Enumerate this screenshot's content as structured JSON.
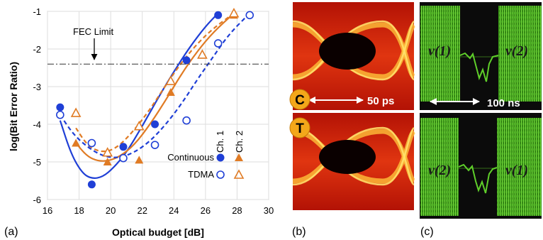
{
  "panel_labels": {
    "a": "(a)",
    "b": "(b)",
    "c": "(c)"
  },
  "chart_data": {
    "type": "scatter",
    "xlabel": "Optical budget [dB]",
    "ylabel": "log(Bit Error Ratio)",
    "xlim": [
      16,
      30
    ],
    "ylim": [
      -6,
      -1
    ],
    "xticks": [
      "16",
      "18",
      "20",
      "22",
      "24",
      "26",
      "28",
      "30"
    ],
    "yticks": [
      "-1",
      "-2",
      "-3",
      "-4",
      "-5",
      "-6"
    ],
    "fec_label": "FEC Limit",
    "fec_value": -2.4,
    "legend": {
      "ch1": "Ch. 1",
      "ch2": "Ch. 2",
      "continuous": "Continuous",
      "tdma": "TDMA"
    },
    "series": [
      {
        "mode": "Continuous",
        "channel": "Ch. 1",
        "color": "#1f3fd6",
        "marker": "circle-filled",
        "line": "solid",
        "x": [
          16.8,
          18.8,
          20.8,
          22.8,
          24.8,
          26.8
        ],
        "y": [
          -3.55,
          -5.6,
          -4.6,
          -4.0,
          -2.3,
          -1.1
        ]
      },
      {
        "mode": "Continuous",
        "channel": "Ch. 2",
        "color": "#e07b24",
        "marker": "triangle-filled",
        "line": "solid",
        "x": [
          17.8,
          19.8,
          21.8,
          23.8,
          25.8,
          27.8
        ],
        "y": [
          -4.5,
          -5.0,
          -4.95,
          -3.15,
          -2.15,
          -1.1
        ]
      },
      {
        "mode": "TDMA",
        "channel": "Ch. 1",
        "color": "#1f3fd6",
        "marker": "circle-open",
        "line": "dashed",
        "x": [
          16.8,
          18.8,
          20.8,
          22.8,
          24.8,
          26.8,
          28.8
        ],
        "y": [
          -3.75,
          -4.5,
          -4.9,
          -4.55,
          -3.9,
          -1.85,
          -1.1
        ]
      },
      {
        "mode": "TDMA",
        "channel": "Ch. 2",
        "color": "#e07b24",
        "marker": "triangle-open",
        "line": "dashed",
        "x": [
          17.8,
          19.8,
          21.8,
          23.8,
          25.8,
          27.8
        ],
        "y": [
          -3.7,
          -4.75,
          -4.05,
          -2.85,
          -2.15,
          -1.05
        ]
      }
    ],
    "fits": [
      {
        "color": "#1f3fd6",
        "line": "solid",
        "x": [
          16.8,
          17.5,
          18.2,
          18.8,
          19.5,
          20.2,
          21,
          22,
          23,
          24,
          25,
          26,
          26.8
        ],
        "y": [
          -3.9,
          -4.8,
          -5.3,
          -5.45,
          -5.4,
          -5.15,
          -4.75,
          -4.05,
          -3.3,
          -2.6,
          -1.95,
          -1.4,
          -1.05
        ]
      },
      {
        "color": "#e07b24",
        "line": "solid",
        "x": [
          17.8,
          18.5,
          19.2,
          19.9,
          20.6,
          21.5,
          22.5,
          23.5,
          24.5,
          25.5,
          26.5,
          27.8
        ],
        "y": [
          -4.5,
          -4.85,
          -4.98,
          -4.97,
          -4.85,
          -4.55,
          -4.0,
          -3.35,
          -2.65,
          -2.05,
          -1.55,
          -1.05
        ]
      },
      {
        "color": "#1f3fd6",
        "line": "dashed",
        "x": [
          16.8,
          17.6,
          18.5,
          19.5,
          20.5,
          21.5,
          22.5,
          23.5,
          24.5,
          25.5,
          26.5,
          27.5,
          28.8
        ],
        "y": [
          -3.75,
          -4.25,
          -4.6,
          -4.85,
          -4.9,
          -4.75,
          -4.45,
          -4.0,
          -3.45,
          -2.8,
          -2.2,
          -1.6,
          -1.05
        ]
      },
      {
        "color": "#e07b24",
        "line": "dashed",
        "x": [
          17.8,
          18.5,
          19.2,
          19.9,
          20.6,
          21.5,
          22.5,
          23.5,
          24.5,
          25.5,
          26.5,
          27.8
        ],
        "y": [
          -4.1,
          -4.55,
          -4.72,
          -4.72,
          -4.55,
          -4.15,
          -3.6,
          -2.95,
          -2.35,
          -1.85,
          -1.45,
          -1.05
        ]
      }
    ]
  },
  "panel_b": {
    "badge_c": "C",
    "badge_t": "T",
    "scale": "50 ps"
  },
  "panel_c": {
    "scale": "100 ns",
    "top_left": "v(1)",
    "top_right": "v(2)",
    "bottom_left": "v(2)",
    "bottom_right": "v(1)",
    "colors": {
      "trace": "#5fcf2a",
      "background": "#0b0b0b"
    }
  }
}
